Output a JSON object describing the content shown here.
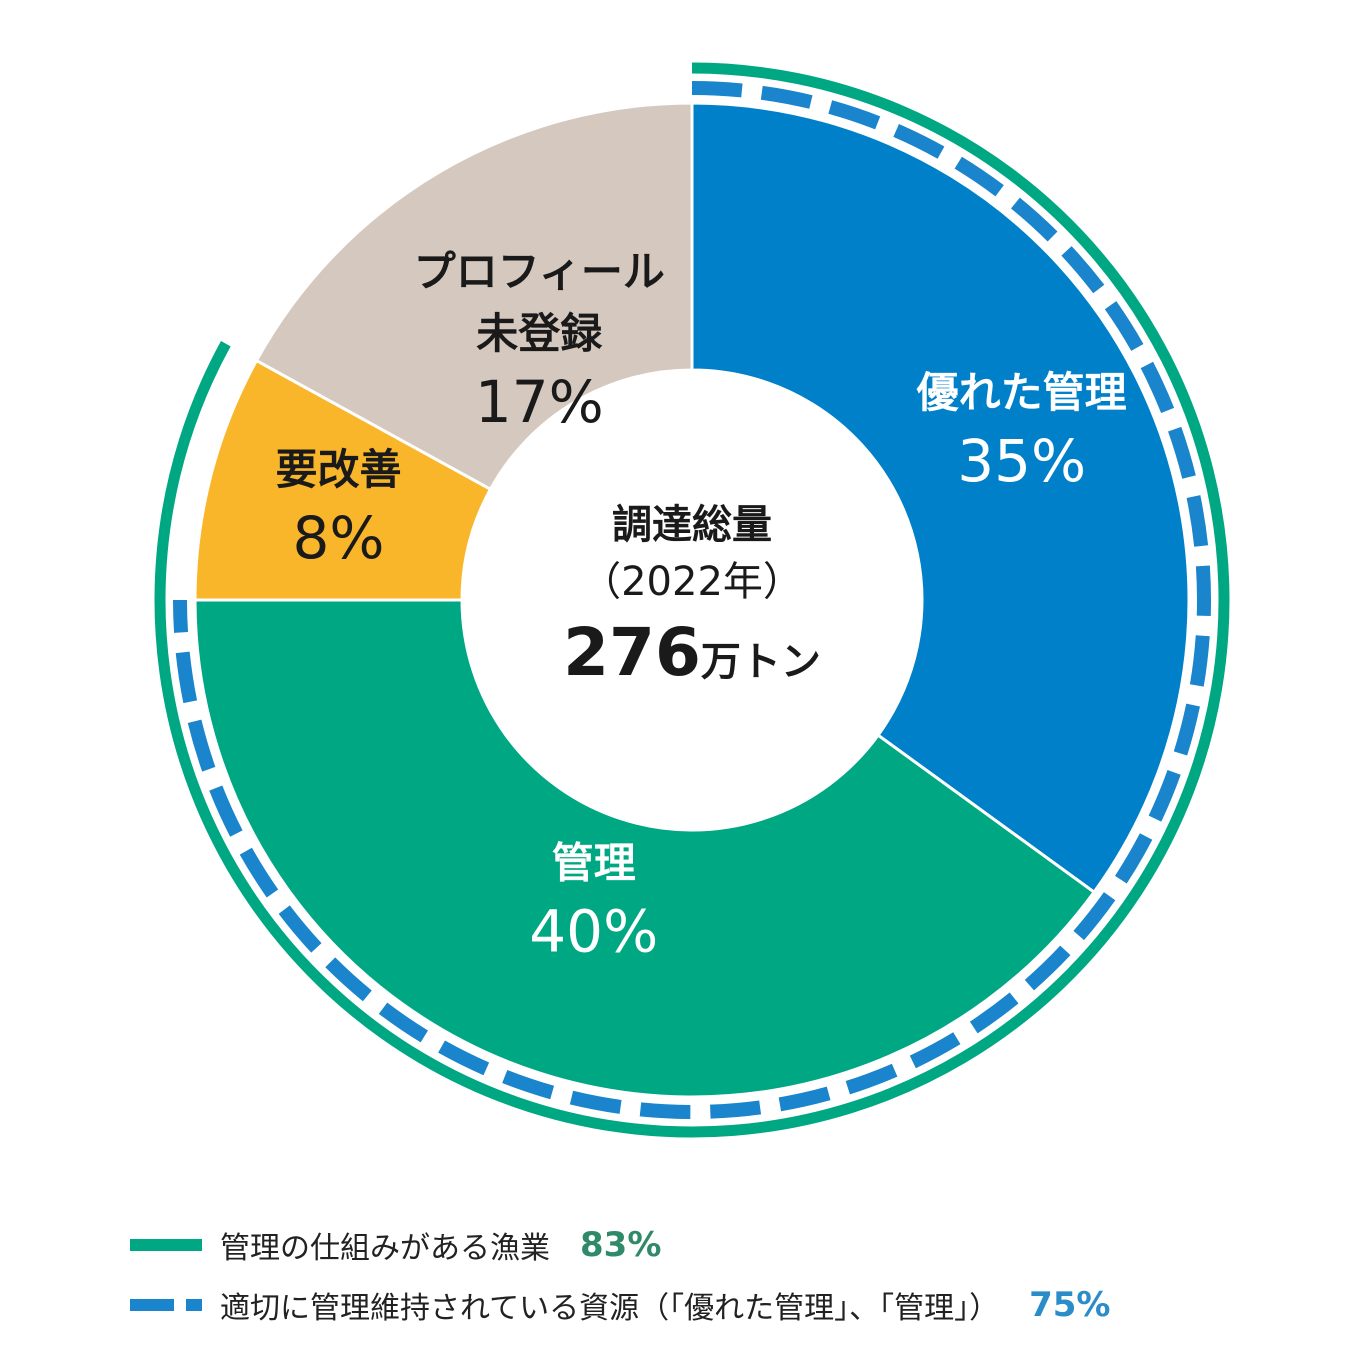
{
  "chart_data": {
    "type": "pie",
    "center": {
      "line1": "調達総量",
      "line2": "（2022年）",
      "value": "276",
      "unit": "万トン"
    },
    "slices": [
      {
        "label_lines": [
          "優れた管理"
        ],
        "pct_text": "35%",
        "value": 35,
        "color": "#0080c9",
        "text_color": "#ffffff"
      },
      {
        "label_lines": [
          "管理"
        ],
        "pct_text": "40%",
        "value": 40,
        "color": "#00a783",
        "text_color": "#ffffff"
      },
      {
        "label_lines": [
          "要改善"
        ],
        "pct_text": "8%",
        "value": 8,
        "color": "#f9b62a",
        "text_color": "#1a1a1a"
      },
      {
        "label_lines": [
          "プロフィール",
          "未登録"
        ],
        "pct_text": "17%",
        "value": 17,
        "color": "#d5c8bf",
        "text_color": "#1a1a1a"
      }
    ],
    "outer_rings": [
      {
        "name": "管理の仕組みがある漁業",
        "value": 83,
        "style": "solid",
        "color": "#00a783"
      },
      {
        "name": "適切に管理維持されている資源（「優れた管理」、「管理」）",
        "value": 75,
        "style": "dashed",
        "color": "#1a84cc"
      }
    ]
  },
  "legend": [
    {
      "label": "管理の仕組みがある漁業",
      "value": "83%",
      "color": "#2f8a6a"
    },
    {
      "label": "適切に管理維持されている資源（「優れた管理」、「管理」）",
      "value": "75%",
      "color": "#2a8cc8"
    }
  ]
}
